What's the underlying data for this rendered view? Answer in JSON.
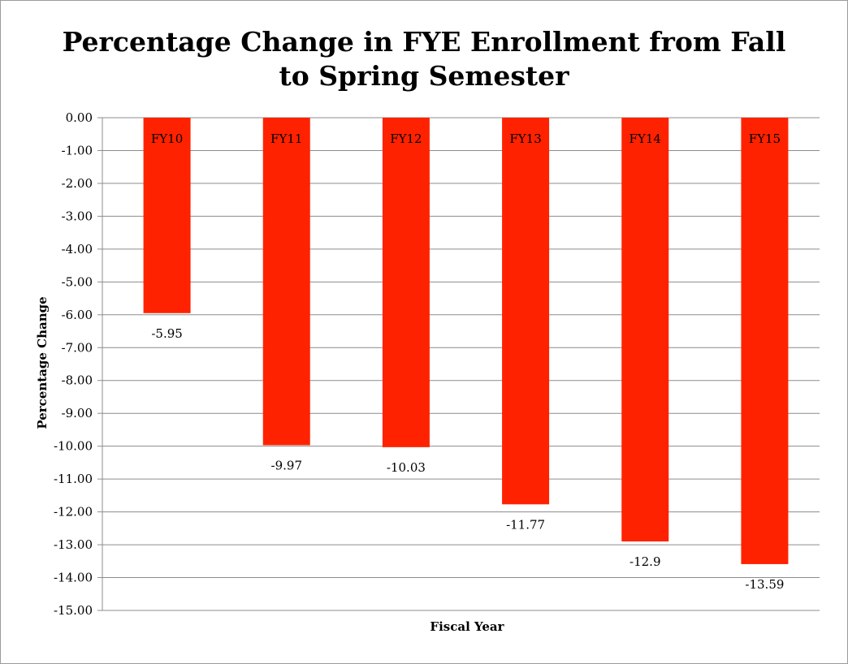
{
  "chart_data": {
    "type": "bar",
    "title_lines": [
      "Percentage Change in FYE Enrollment from Fall",
      "to Spring Semester"
    ],
    "xlabel": "Fiscal Year",
    "ylabel": "Percentage Change",
    "categories": [
      "FY10",
      "FY11",
      "FY12",
      "FY13",
      "FY14",
      "FY15"
    ],
    "values": [
      -5.95,
      -9.97,
      -10.03,
      -11.77,
      -12.9,
      -13.59
    ],
    "value_labels": [
      "-5.95",
      "-9.97",
      "-10.03",
      "-11.77",
      "-12.9",
      "-13.59"
    ],
    "ylim": [
      -15,
      0
    ],
    "ytick_step": 1,
    "ytick_decimals": 2,
    "grid": true,
    "legend": "none",
    "bar_color": "#ff2200",
    "category_label_position": "inside-top-of-bar"
  }
}
